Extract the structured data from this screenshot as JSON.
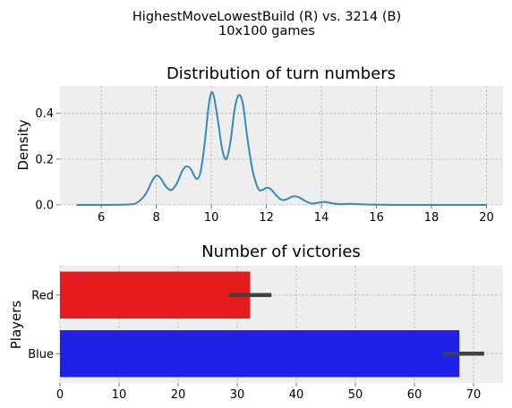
{
  "figure": {
    "suptitle_line1": "HighestMoveLowestBuild (R) vs. 3214 (B)",
    "suptitle_line2": "10x100 games"
  },
  "chart_data": [
    {
      "type": "line",
      "title": "Distribution of turn numbers",
      "xlabel": "",
      "ylabel": "Density",
      "xlim": [
        4.5,
        20.6
      ],
      "ylim": [
        0,
        0.52
      ],
      "xticks": [
        6,
        8,
        10,
        12,
        14,
        16,
        18,
        20
      ],
      "yticks": [
        0.0,
        0.2,
        0.4
      ],
      "grid": true,
      "series": [
        {
          "color": "#348abd",
          "x": [
            5.1,
            6.0,
            7.0,
            7.3,
            7.6,
            7.85,
            8.0,
            8.15,
            8.35,
            8.55,
            8.75,
            8.95,
            9.1,
            9.25,
            9.45,
            9.6,
            9.75,
            9.9,
            10.0,
            10.1,
            10.25,
            10.4,
            10.55,
            10.7,
            10.85,
            11.0,
            11.15,
            11.3,
            11.5,
            11.7,
            11.85,
            12.0,
            12.15,
            12.35,
            12.55,
            12.75,
            12.95,
            13.15,
            13.4,
            13.65,
            13.9,
            14.15,
            14.4,
            14.7,
            15.0,
            15.4,
            16.0,
            17.0,
            18.0,
            19.0,
            20.0
          ],
          "y": [
            0.0,
            0.0,
            0.002,
            0.01,
            0.045,
            0.105,
            0.128,
            0.118,
            0.08,
            0.065,
            0.095,
            0.15,
            0.168,
            0.158,
            0.115,
            0.14,
            0.26,
            0.43,
            0.49,
            0.47,
            0.36,
            0.24,
            0.2,
            0.28,
            0.42,
            0.48,
            0.44,
            0.3,
            0.15,
            0.072,
            0.065,
            0.075,
            0.07,
            0.043,
            0.022,
            0.025,
            0.037,
            0.035,
            0.018,
            0.006,
            0.01,
            0.013,
            0.007,
            0.003,
            0.005,
            0.003,
            0.001,
            0.0,
            0.0,
            0.0,
            0.0
          ]
        }
      ]
    },
    {
      "type": "bar",
      "orientation": "horizontal",
      "title": "Number of victories",
      "xlabel": "",
      "ylabel": "Players",
      "xlim": [
        0,
        75
      ],
      "xticks": [
        0,
        10,
        20,
        30,
        40,
        50,
        60,
        70
      ],
      "grid": true,
      "categories": [
        "Red",
        "Blue"
      ],
      "values": [
        32.2,
        67.6
      ],
      "error_low": [
        28.6,
        64.8
      ],
      "error_high": [
        35.8,
        71.8
      ],
      "colors": [
        "#e41a1c",
        "#1f1fe6"
      ],
      "error_color": "#424242"
    }
  ]
}
